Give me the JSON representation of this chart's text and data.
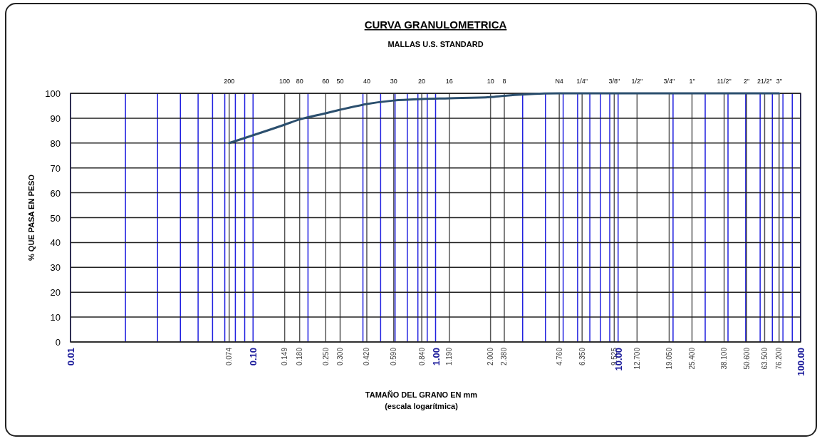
{
  "chart_data": {
    "type": "line",
    "title": "CURVA GRANULOMETRICA",
    "subtitle": "MALLAS U.S. STANDARD",
    "xlabel": "TAMAÑO DEL GRANO EN mm",
    "ylabel": "% QUE PASA EN PESO",
    "annotations": [
      "(escala logarítmica)",
      "200",
      "100",
      "80",
      "60",
      "50",
      "40",
      "30",
      "20",
      "16",
      "10",
      "8",
      "N4",
      "1/4\"",
      "3/8\"",
      "1/2\"",
      "3/4\"",
      "1\"",
      "11/2\"",
      "2\"",
      "21/2\"",
      "3\""
    ],
    "log": "x",
    "grid": true,
    "marker": "none",
    "line_style": "solid",
    "xlim": [
      0.01,
      100
    ],
    "ylim": [
      0,
      100
    ],
    "yticks": [
      0,
      10,
      20,
      30,
      40,
      50,
      60,
      70,
      80,
      90,
      100
    ],
    "xticks": [
      {
        "value": 0.01,
        "label": "0.01"
      },
      {
        "value": 0.02,
        "label": null
      },
      {
        "value": 0.03,
        "label": null
      },
      {
        "value": 0.04,
        "label": null
      },
      {
        "value": 0.05,
        "label": null
      },
      {
        "value": 0.06,
        "label": null
      },
      {
        "value": 0.07,
        "label": null
      },
      {
        "value": 0.074,
        "label": "0.074"
      },
      {
        "value": 0.08,
        "label": null
      },
      {
        "value": 0.09,
        "label": null
      },
      {
        "value": 0.1,
        "label": "0.10"
      },
      {
        "value": 0.149,
        "label": "0.149"
      },
      {
        "value": 0.18,
        "label": "0.180"
      },
      {
        "value": 0.2,
        "label": null
      },
      {
        "value": 0.25,
        "label": "0.250"
      },
      {
        "value": 0.3,
        "label": "0.300"
      },
      {
        "value": 0.4,
        "label": null
      },
      {
        "value": 0.42,
        "label": "0.420"
      },
      {
        "value": 0.5,
        "label": null
      },
      {
        "value": 0.59,
        "label": "0.590"
      },
      {
        "value": 0.6,
        "label": null
      },
      {
        "value": 0.7,
        "label": null
      },
      {
        "value": 0.8,
        "label": null
      },
      {
        "value": 0.84,
        "label": "0.840"
      },
      {
        "value": 0.9,
        "label": null
      },
      {
        "value": 1,
        "label": "1.00"
      },
      {
        "value": 1.19,
        "label": "1.190"
      },
      {
        "value": 2,
        "label": "2.000"
      },
      {
        "value": 2.38,
        "label": "2.380"
      },
      {
        "value": 3,
        "label": null
      },
      {
        "value": 4,
        "label": null
      },
      {
        "value": 4.76,
        "label": "4.760"
      },
      {
        "value": 5,
        "label": null
      },
      {
        "value": 6,
        "label": null
      },
      {
        "value": 6.35,
        "label": "6.350"
      },
      {
        "value": 7,
        "label": null
      },
      {
        "value": 8,
        "label": null
      },
      {
        "value": 9,
        "label": null
      },
      {
        "value": 9.525,
        "label": "9.525"
      },
      {
        "value": 10,
        "label": "10.00"
      },
      {
        "value": 12.7,
        "label": "12.700"
      },
      {
        "value": 19.05,
        "label": "19.050"
      },
      {
        "value": 20,
        "label": null
      },
      {
        "value": 25.4,
        "label": "25.400"
      },
      {
        "value": 30,
        "label": null
      },
      {
        "value": 38.1,
        "label": "38.100"
      },
      {
        "value": 40,
        "label": null
      },
      {
        "value": 50,
        "label": null
      },
      {
        "value": 50.6,
        "label": "50.600"
      },
      {
        "value": 60,
        "label": null
      },
      {
        "value": 63.5,
        "label": "63.500"
      },
      {
        "value": 70,
        "label": null
      },
      {
        "value": 76.2,
        "label": "76.200"
      },
      {
        "value": 80,
        "label": null
      },
      {
        "value": 90,
        "label": null
      },
      {
        "value": 100,
        "label": "100.00"
      }
    ],
    "series": [
      {
        "color": "#2b4f6e",
        "x": [
          0.074,
          0.149,
          0.18,
          0.25,
          0.3,
          0.42,
          0.59,
          0.84,
          1.19,
          2,
          2.38,
          4.76,
          6.35,
          9.525,
          12.7,
          19.05,
          25.4,
          38.1,
          50.6,
          63.5,
          76.2
        ],
        "values": [
          80,
          87.4,
          89.5,
          92,
          93.4,
          95.7,
          97.1,
          97.7,
          98,
          98.5,
          99,
          100,
          100,
          100,
          100,
          100,
          100,
          100,
          100,
          100,
          100
        ]
      }
    ]
  }
}
